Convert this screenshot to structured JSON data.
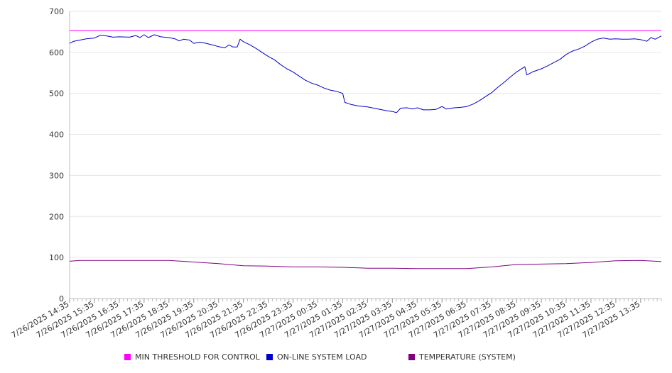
{
  "chart_data": {
    "type": "line",
    "title": "",
    "xlabel": "",
    "ylabel": "",
    "ylim": [
      0,
      700
    ],
    "yticks": [
      0,
      100,
      200,
      300,
      400,
      500,
      600,
      700
    ],
    "x_tick_labels": [
      "7/26/2025 14:35",
      "7/26/2025 15:35",
      "7/26/2025 16:35",
      "7/26/2025 17:35",
      "7/26/2025 18:35",
      "7/26/2025 19:35",
      "7/26/2025 20:35",
      "7/26/2025 21:35",
      "7/26/2025 22:35",
      "7/26/2025 23:35",
      "7/27/2025 00:35",
      "7/27/2025 01:35",
      "7/27/2025 02:35",
      "7/27/2025 03:35",
      "7/27/2025 04:35",
      "7/27/2025 05:35",
      "7/27/2025 06:35",
      "7/27/2025 07:35",
      "7/27/2025 08:35",
      "7/27/2025 09:35",
      "7/27/2025 10:35",
      "7/27/2025 11:35",
      "7/27/2025 12:35",
      "7/27/2025 13:35"
    ],
    "x_range": [
      "7/26/2025 14:35",
      "7/27/2025 14:25"
    ],
    "grid": "horizontal",
    "legend_position": "bottom",
    "series": [
      {
        "name": "MIN THRESHOLD FOR CONTROL",
        "color": "#ff00ff",
        "points": [
          [
            "7/26/2025 14:35",
            653
          ],
          [
            "7/27/2025 14:25",
            653
          ]
        ]
      },
      {
        "name": "ON-LINE SYSTEM LOAD",
        "color": "#0000cc",
        "points": [
          [
            "7/26/2025 14:35",
            622
          ],
          [
            "7/26/2025 14:45",
            627
          ],
          [
            "7/26/2025 15:00",
            630
          ],
          [
            "7/26/2025 15:15",
            633
          ],
          [
            "7/26/2025 15:35",
            635
          ],
          [
            "7/26/2025 15:50",
            642
          ],
          [
            "7/26/2025 16:05",
            640
          ],
          [
            "7/26/2025 16:20",
            637
          ],
          [
            "7/26/2025 16:35",
            638
          ],
          [
            "7/26/2025 17:00",
            637
          ],
          [
            "7/26/2025 17:15",
            641
          ],
          [
            "7/26/2025 17:25",
            636
          ],
          [
            "7/26/2025 17:35",
            643
          ],
          [
            "7/26/2025 17:45",
            636
          ],
          [
            "7/26/2025 18:00",
            643
          ],
          [
            "7/26/2025 18:15",
            638
          ],
          [
            "7/26/2025 18:35",
            636
          ],
          [
            "7/26/2025 18:50",
            633
          ],
          [
            "7/26/2025 19:00",
            628
          ],
          [
            "7/26/2025 19:10",
            632
          ],
          [
            "7/26/2025 19:25",
            630
          ],
          [
            "7/26/2025 19:35",
            622
          ],
          [
            "7/26/2025 19:50",
            625
          ],
          [
            "7/26/2025 20:05",
            622
          ],
          [
            "7/26/2025 20:20",
            618
          ],
          [
            "7/26/2025 20:35",
            614
          ],
          [
            "7/26/2025 20:50",
            611
          ],
          [
            "7/26/2025 21:00",
            618
          ],
          [
            "7/26/2025 21:10",
            613
          ],
          [
            "7/26/2025 21:20",
            613
          ],
          [
            "7/26/2025 21:27",
            632
          ],
          [
            "7/26/2025 21:35",
            626
          ],
          [
            "7/26/2025 21:50",
            619
          ],
          [
            "7/26/2025 22:05",
            610
          ],
          [
            "7/26/2025 22:20",
            600
          ],
          [
            "7/26/2025 22:35",
            590
          ],
          [
            "7/26/2025 22:50",
            582
          ],
          [
            "7/26/2025 23:05",
            570
          ],
          [
            "7/26/2025 23:20",
            560
          ],
          [
            "7/26/2025 23:35",
            552
          ],
          [
            "7/26/2025 23:50",
            542
          ],
          [
            "7/27/2025 00:05",
            532
          ],
          [
            "7/27/2025 00:20",
            525
          ],
          [
            "7/27/2025 00:35",
            520
          ],
          [
            "7/27/2025 00:50",
            513
          ],
          [
            "7/27/2025 01:05",
            508
          ],
          [
            "7/27/2025 01:20",
            505
          ],
          [
            "7/27/2025 01:35",
            500
          ],
          [
            "7/27/2025 01:40",
            478
          ],
          [
            "7/27/2025 01:55",
            473
          ],
          [
            "7/27/2025 02:10",
            470
          ],
          [
            "7/27/2025 02:35",
            467
          ],
          [
            "7/27/2025 02:50",
            464
          ],
          [
            "7/27/2025 03:05",
            461
          ],
          [
            "7/27/2025 03:20",
            458
          ],
          [
            "7/27/2025 03:35",
            456
          ],
          [
            "7/27/2025 03:45",
            453
          ],
          [
            "7/27/2025 03:55",
            464
          ],
          [
            "7/27/2025 04:10",
            465
          ],
          [
            "7/27/2025 04:25",
            462
          ],
          [
            "7/27/2025 04:35",
            465
          ],
          [
            "7/27/2025 04:50",
            460
          ],
          [
            "7/27/2025 05:05",
            460
          ],
          [
            "7/27/2025 05:20",
            461
          ],
          [
            "7/27/2025 05:35",
            468
          ],
          [
            "7/27/2025 05:45",
            462
          ],
          [
            "7/27/2025 06:05",
            465
          ],
          [
            "7/27/2025 06:20",
            466
          ],
          [
            "7/27/2025 06:35",
            468
          ],
          [
            "7/27/2025 06:50",
            474
          ],
          [
            "7/27/2025 07:05",
            482
          ],
          [
            "7/27/2025 07:20",
            492
          ],
          [
            "7/27/2025 07:35",
            502
          ],
          [
            "7/27/2025 07:50",
            515
          ],
          [
            "7/27/2025 08:05",
            527
          ],
          [
            "7/27/2025 08:20",
            540
          ],
          [
            "7/27/2025 08:35",
            552
          ],
          [
            "7/27/2025 08:55",
            565
          ],
          [
            "7/27/2025 09:00",
            545
          ],
          [
            "7/27/2025 09:15",
            553
          ],
          [
            "7/27/2025 09:35",
            560
          ],
          [
            "7/27/2025 09:50",
            567
          ],
          [
            "7/27/2025 10:05",
            575
          ],
          [
            "7/27/2025 10:20",
            583
          ],
          [
            "7/27/2025 10:35",
            595
          ],
          [
            "7/27/2025 10:50",
            603
          ],
          [
            "7/27/2025 11:05",
            608
          ],
          [
            "7/27/2025 11:20",
            615
          ],
          [
            "7/27/2025 11:35",
            625
          ],
          [
            "7/27/2025 11:50",
            632
          ],
          [
            "7/27/2025 12:05",
            635
          ],
          [
            "7/27/2025 12:20",
            632
          ],
          [
            "7/27/2025 12:35",
            633
          ],
          [
            "7/27/2025 12:50",
            632
          ],
          [
            "7/27/2025 13:05",
            632
          ],
          [
            "7/27/2025 13:20",
            633
          ],
          [
            "7/27/2025 13:35",
            631
          ],
          [
            "7/27/2025 13:50",
            627
          ],
          [
            "7/27/2025 14:00",
            636
          ],
          [
            "7/27/2025 14:10",
            632
          ],
          [
            "7/27/2025 14:25",
            640
          ]
        ]
      },
      {
        "name": "TEMPERATURE (SYSTEM)",
        "color": "#800080",
        "points": [
          [
            "7/26/2025 14:35",
            91
          ],
          [
            "7/26/2025 15:00",
            93
          ],
          [
            "7/26/2025 16:35",
            93
          ],
          [
            "7/26/2025 18:35",
            93
          ],
          [
            "7/26/2025 19:35",
            89
          ],
          [
            "7/26/2025 20:35",
            85
          ],
          [
            "7/26/2025 21:35",
            80
          ],
          [
            "7/26/2025 22:35",
            79
          ],
          [
            "7/26/2025 23:35",
            77
          ],
          [
            "7/27/2025 00:35",
            77
          ],
          [
            "7/27/2025 01:35",
            76
          ],
          [
            "7/27/2025 02:35",
            74
          ],
          [
            "7/27/2025 03:35",
            74
          ],
          [
            "7/27/2025 04:35",
            73
          ],
          [
            "7/27/2025 05:35",
            73
          ],
          [
            "7/27/2025 06:35",
            73
          ],
          [
            "7/27/2025 07:35",
            77
          ],
          [
            "7/27/2025 08:35",
            83
          ],
          [
            "7/27/2025 09:35",
            84
          ],
          [
            "7/27/2025 10:35",
            85
          ],
          [
            "7/27/2025 11:35",
            88
          ],
          [
            "7/27/2025 12:35",
            92
          ],
          [
            "7/27/2025 13:35",
            93
          ],
          [
            "7/27/2025 14:25",
            90
          ]
        ]
      }
    ]
  }
}
